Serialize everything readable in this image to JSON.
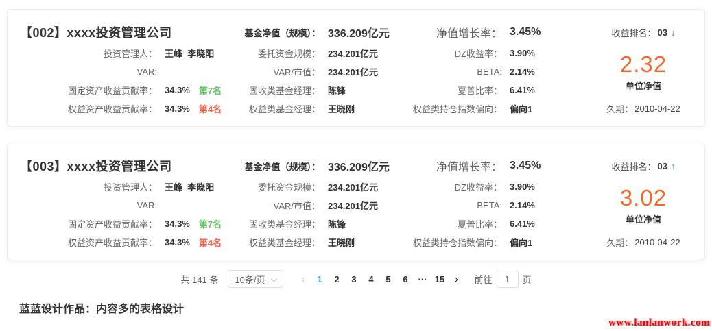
{
  "cards": [
    {
      "title": "【002】xxxx投资管理公司",
      "c1": [
        {
          "label": "投资管理人：",
          "value": "王峰  李晓阳"
        },
        {
          "label": "VAR:",
          "value": ""
        },
        {
          "label": "固定资产收益贡献率：",
          "value": "34.3%",
          "rank": "第7名",
          "rank_color": "green"
        },
        {
          "label": "权益资产收益贡献率：",
          "value": "34.3%",
          "rank": "第4名",
          "rank_color": "orange"
        }
      ],
      "c2": [
        {
          "label": "基金净值（规模）：",
          "value": "336.209亿元"
        },
        {
          "label": "委托资金规模：",
          "value": "234.201亿元"
        },
        {
          "label": "VAR/市值：",
          "value": "234.201亿元"
        },
        {
          "label": "固收类基金经理：",
          "value": "陈锋"
        },
        {
          "label": "权益类基金经理：",
          "value": "王晓刚"
        }
      ],
      "c3": [
        {
          "label": "净值增长率：",
          "value": "3.45%"
        },
        {
          "label": "DZ收益率：",
          "value": "3.90%"
        },
        {
          "label": "BETA:",
          "value": "2.14%"
        },
        {
          "label": "夏普比率：",
          "value": "6.41%"
        },
        {
          "label": "权益类持仓指数偏向：",
          "value": "偏向1"
        }
      ],
      "c4": {
        "rank_label": "收益排名：",
        "rank_value": "03",
        "trend": "down",
        "trend_icon": "↓",
        "nav_value": "2.32",
        "nav_label": "单位净值",
        "duration_label": "久期：",
        "duration_value": "2010-04-22"
      }
    },
    {
      "title": "【003】xxxx投资管理公司",
      "c1": [
        {
          "label": "投资管理人：",
          "value": "王峰  李晓阳"
        },
        {
          "label": "VAR:",
          "value": ""
        },
        {
          "label": "固定资产收益贡献率：",
          "value": "34.3%",
          "rank": "第7名",
          "rank_color": "green"
        },
        {
          "label": "权益资产收益贡献率：",
          "value": "34.3%",
          "rank": "第4名",
          "rank_color": "orange"
        }
      ],
      "c2": [
        {
          "label": "基金净值（规模）：",
          "value": "336.209亿元"
        },
        {
          "label": "委托资金规模：",
          "value": "234.201亿元"
        },
        {
          "label": "VAR/市值：",
          "value": "234.201亿元"
        },
        {
          "label": "固收类基金经理：",
          "value": "陈锋"
        },
        {
          "label": "权益类基金经理：",
          "value": "王晓刚"
        }
      ],
      "c3": [
        {
          "label": "净值增长率：",
          "value": "3.45%"
        },
        {
          "label": "DZ收益率：",
          "value": "3.90%"
        },
        {
          "label": "BETA:",
          "value": "2.14%"
        },
        {
          "label": "夏普比率：",
          "value": "6.41%"
        },
        {
          "label": "权益类持仓指数偏向：",
          "value": "偏向1"
        }
      ],
      "c4": {
        "rank_label": "收益排名：",
        "rank_value": "03",
        "trend": "up",
        "trend_icon": "↑",
        "nav_value": "3.02",
        "nav_label": "单位净值",
        "duration_label": "久期：",
        "duration_value": "2010-04-22"
      }
    }
  ],
  "pagination": {
    "total": "共 141 条",
    "page_size": "10条/页",
    "prev": "‹",
    "next": "›",
    "pages": [
      "1",
      "2",
      "3",
      "4",
      "5",
      "6",
      "···",
      "15"
    ],
    "goto_label": "前往",
    "goto_value": "1",
    "goto_suffix": "页"
  },
  "footer": {
    "caption": "蓝蓝设计作品：内容多的表格设计"
  },
  "watermark": "www.lanlanwork.com",
  "colors": {
    "accent_orange": "#f5672a",
    "rank_green": "#62c462",
    "rank_orange": "#f0614a",
    "trend_up_green": "#2eb872",
    "trend_down_red": "#e23b3b",
    "active_page_blue": "#3d9df2",
    "watermark_red": "#dd1111"
  }
}
